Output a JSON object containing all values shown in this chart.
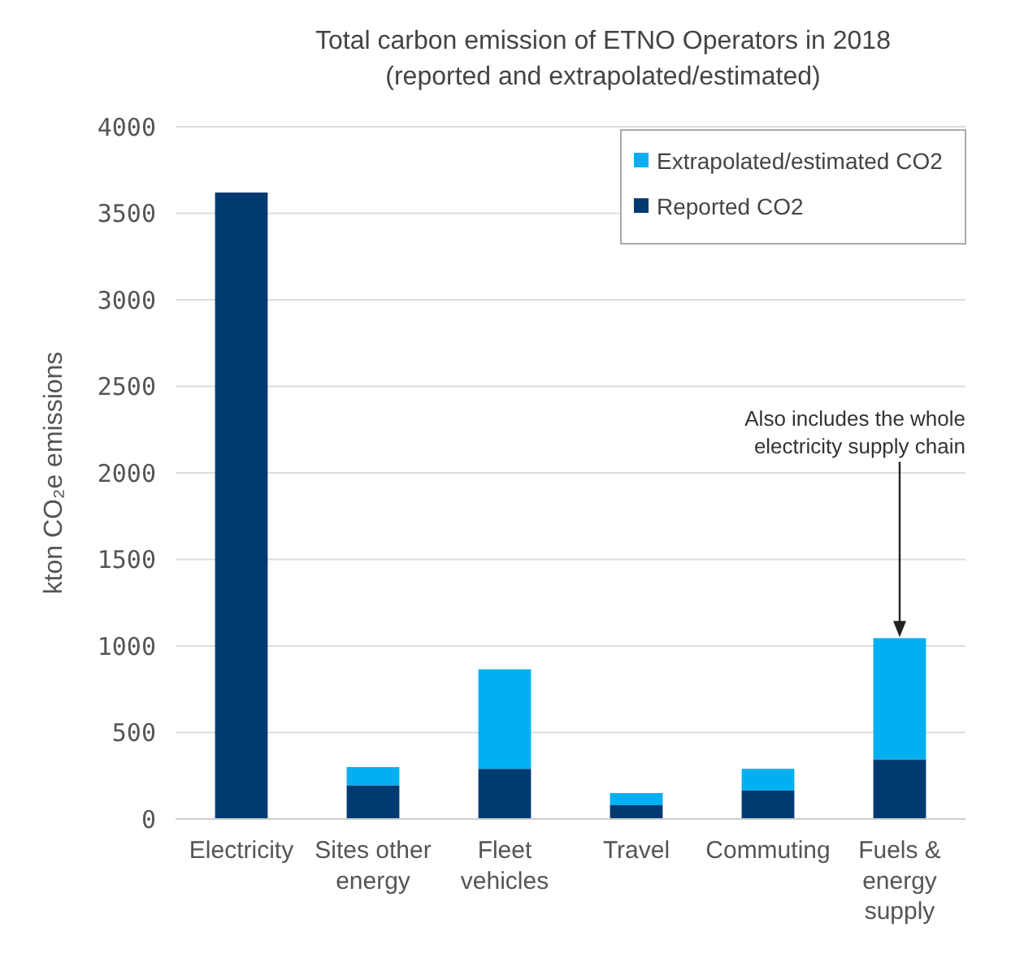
{
  "chart_data": {
    "type": "bar",
    "title": "Total carbon emission of ETNO Operators in 2018",
    "subtitle": "(reported and extrapolated/estimated)",
    "ylabel": "kton CO₂e emissions",
    "categories": [
      "Electricity",
      "Sites other energy",
      "Fleet vehicles",
      "Travel",
      "Commuting",
      "Fuels & energy supply"
    ],
    "stacked": true,
    "series": [
      {
        "name": "Reported CO2",
        "color": "#003a70",
        "values": [
          3620,
          195,
          290,
          80,
          165,
          345
        ]
      },
      {
        "name": "Extrapolated/estimated CO2",
        "color": "#00b0f0",
        "values": [
          0,
          105,
          575,
          70,
          125,
          700
        ]
      }
    ],
    "ylim": [
      0,
      4000
    ],
    "yticks": [
      0,
      500,
      1000,
      1500,
      2000,
      2500,
      3000,
      3500,
      4000
    ],
    "grid": "y",
    "legend": "top right",
    "annotations": [
      {
        "text": "Also includes the whole electricity supply chain",
        "x": "Fuels & energy supply",
        "y": 1050
      }
    ]
  }
}
